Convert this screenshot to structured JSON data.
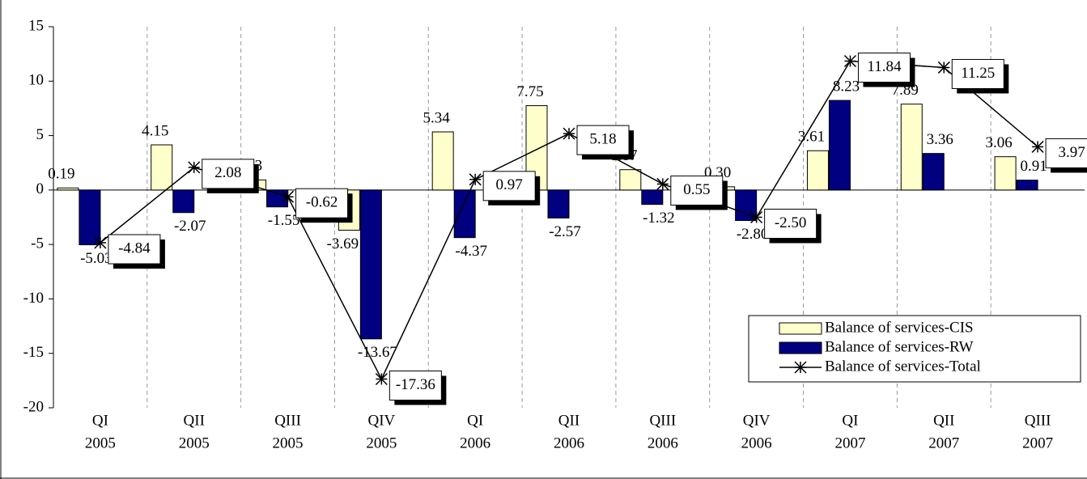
{
  "chart_data": {
    "type": "bar-line",
    "categories": [
      [
        "QI",
        "2005"
      ],
      [
        "QII",
        "2005"
      ],
      [
        "QIII",
        "2005"
      ],
      [
        "QIV",
        "2005"
      ],
      [
        "QI",
        "2006"
      ],
      [
        "QII",
        "2006"
      ],
      [
        "QIII",
        "2006"
      ],
      [
        "QIV",
        "2006"
      ],
      [
        "QI",
        "2007"
      ],
      [
        "QII",
        "2007"
      ],
      [
        "QIII",
        "2007"
      ]
    ],
    "series": [
      {
        "name": "Balance of services-CIS",
        "type": "bar",
        "color": "#ffffcc",
        "values": [
          0.19,
          4.15,
          0.93,
          -3.69,
          5.34,
          7.75,
          1.87,
          0.3,
          3.61,
          7.89,
          3.06
        ],
        "value_labels": [
          "0.19",
          "4.15",
          "0.93",
          "-3.69",
          "5.34",
          "7.75",
          "1.87",
          "0.30",
          "3.61",
          "7.89",
          "3.06"
        ]
      },
      {
        "name": "Balance of services-RW",
        "type": "bar",
        "color": "#000080",
        "values": [
          -5.03,
          -2.07,
          -1.55,
          -13.67,
          -4.37,
          -2.57,
          -1.32,
          -2.8,
          8.23,
          3.36,
          0.91
        ],
        "value_labels": [
          "-5.03",
          "-2.07",
          "-1.55",
          "-13.67",
          "-4.37",
          "-2.57",
          "-1.32",
          "-2.80",
          "8.23",
          "3.36",
          "0.91"
        ]
      },
      {
        "name": "Balance of services-Total",
        "type": "line",
        "color": "#000000",
        "values": [
          -4.84,
          2.08,
          -0.62,
          -17.36,
          0.97,
          5.18,
          0.55,
          -2.5,
          11.84,
          11.25,
          3.97
        ],
        "value_labels": [
          "-4.84",
          "2.08",
          "-0.62",
          "-17.36",
          "0.97",
          "5.18",
          "0.55",
          "-2.50",
          "11.84",
          "11.25",
          "3.97"
        ]
      }
    ],
    "ylim": [
      -20,
      15
    ],
    "yticks": [
      -20,
      -15,
      -10,
      -5,
      0,
      5,
      10,
      15
    ],
    "legend": "bottom-right"
  }
}
